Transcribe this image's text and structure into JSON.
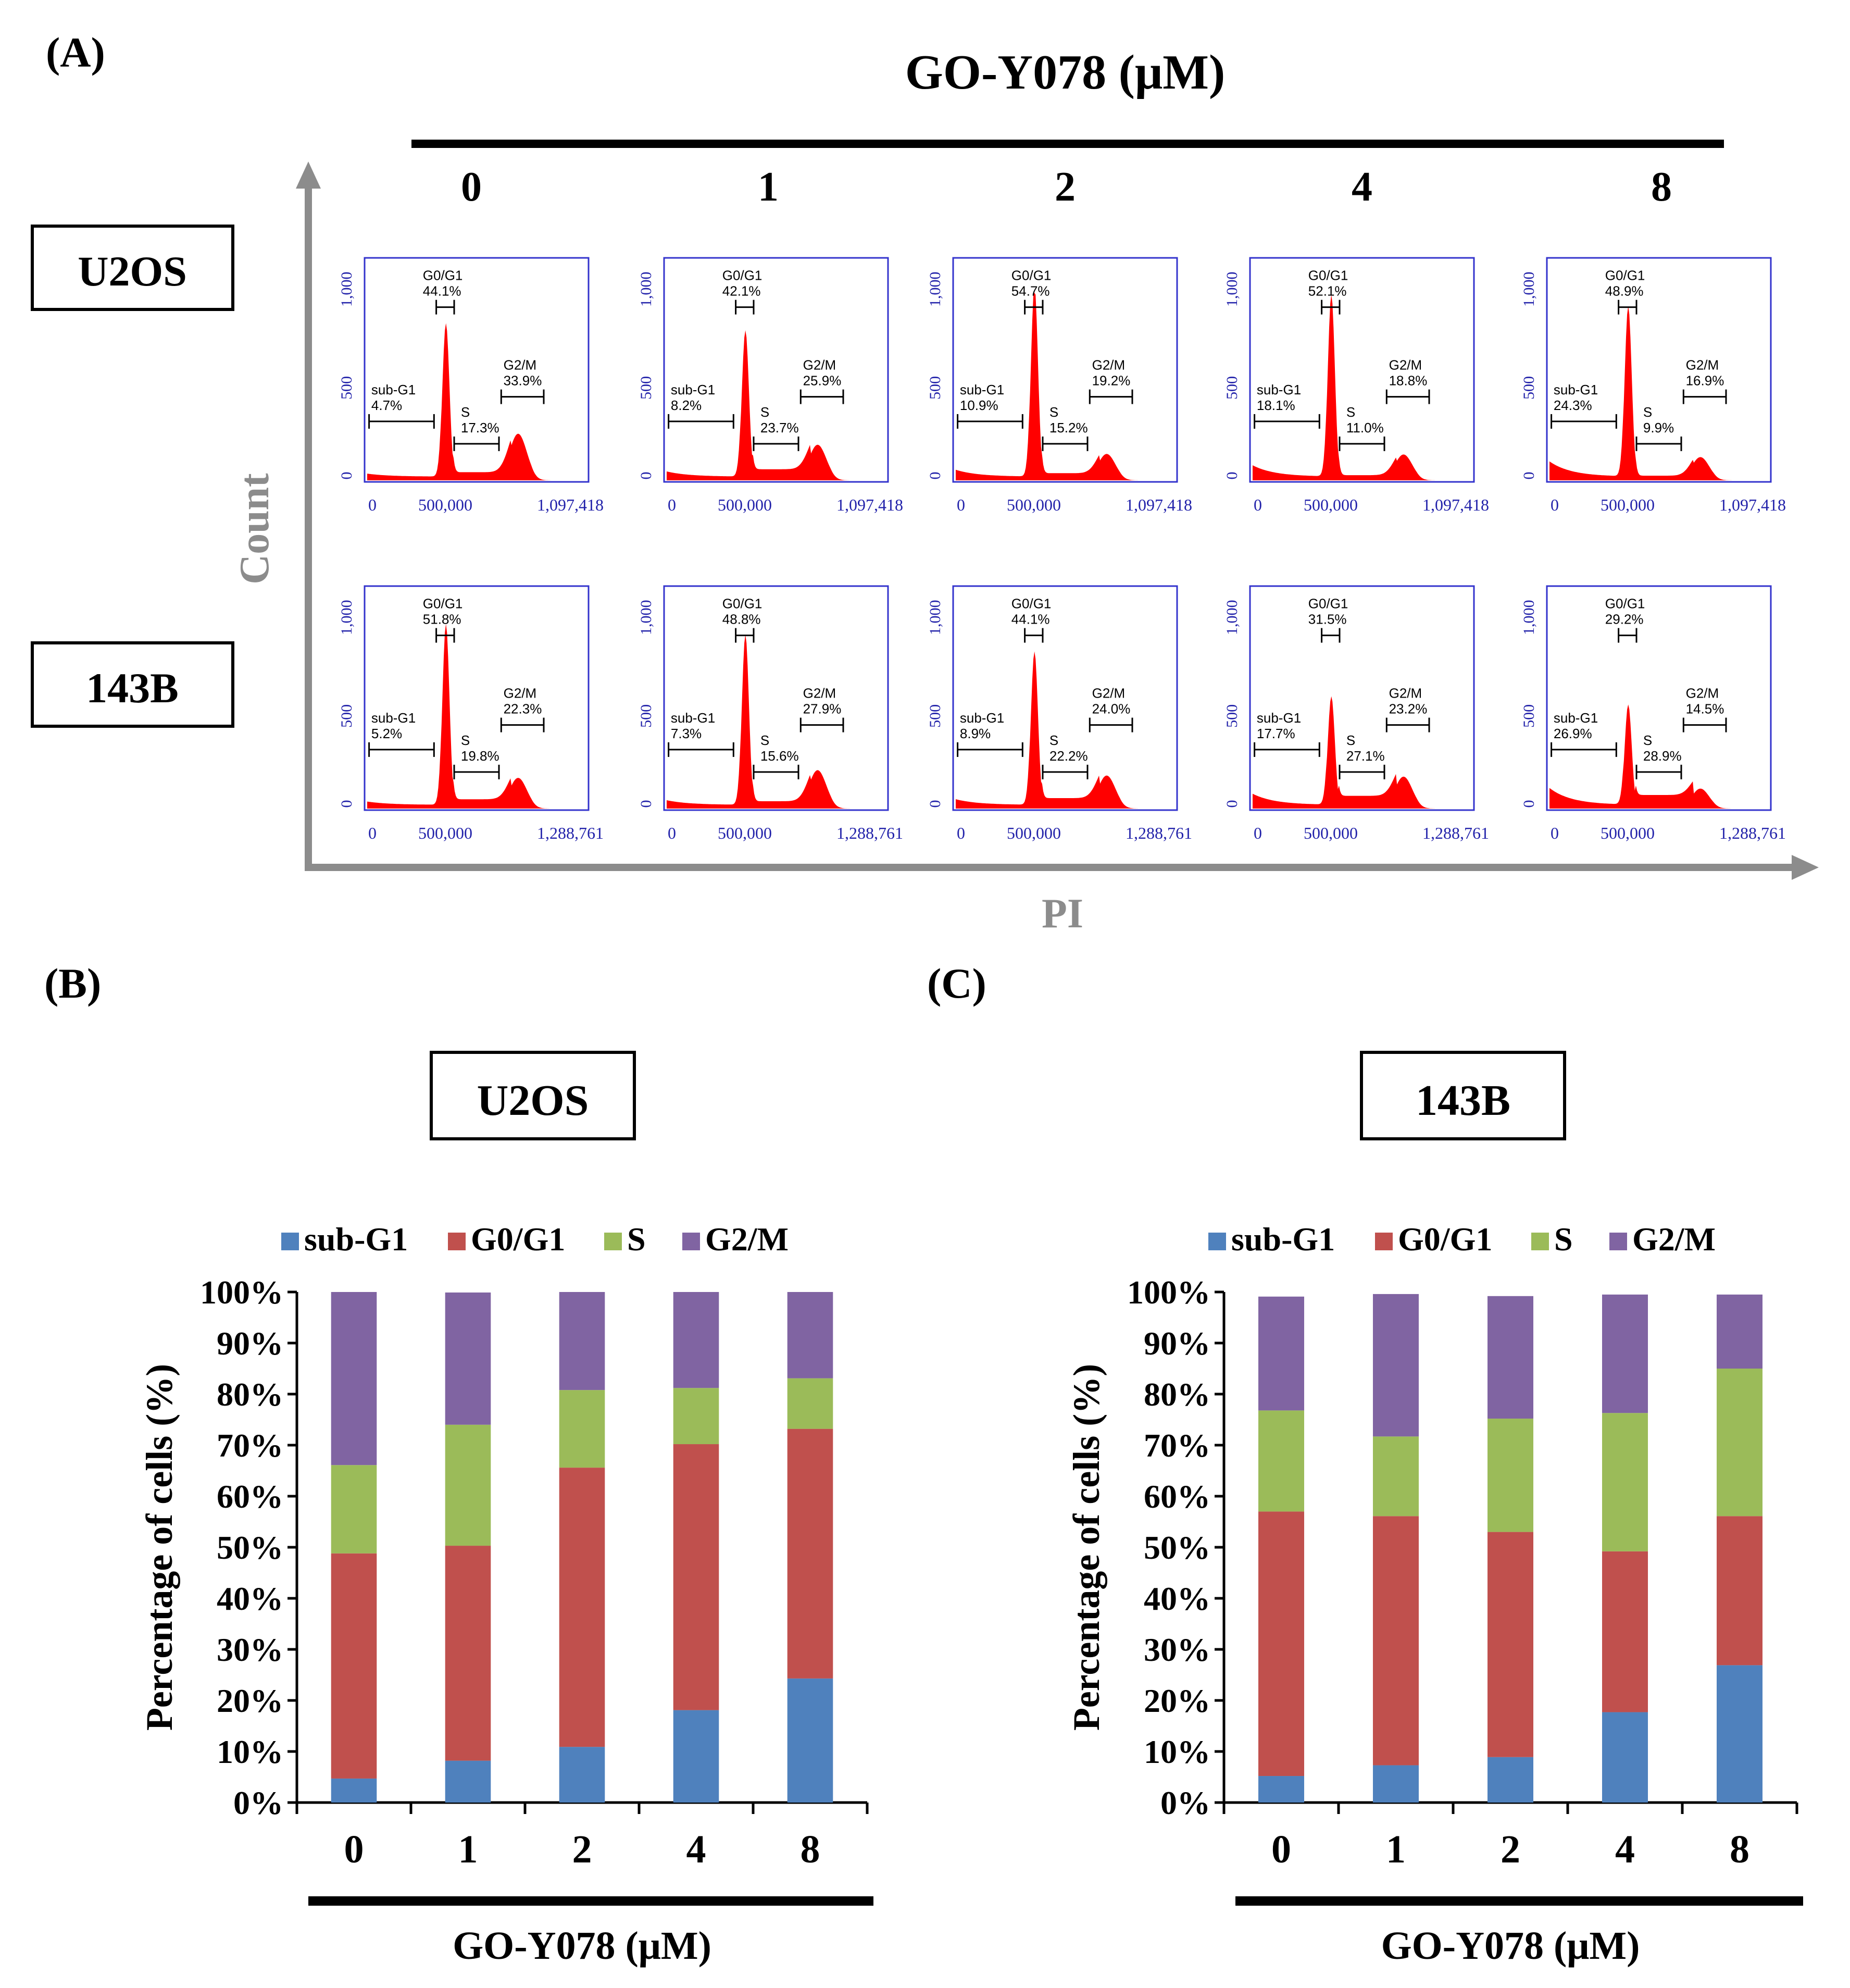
{
  "panels": {
    "a": "(A)",
    "b": "(B)",
    "c": "(C)"
  },
  "drug_axis": {
    "label": "GO-Y078 (μM)",
    "doses": [
      "0",
      "1",
      "2",
      "4",
      "8"
    ]
  },
  "panel_a": {
    "y_label": "Count",
    "x_label": "PI",
    "rows": [
      {
        "cell_line": "U2OS",
        "y_ticks": [
          "0",
          "500",
          "1,000"
        ],
        "x_ticks": [
          "0",
          "500,000",
          "1,097,418"
        ],
        "histograms": [
          {
            "dose": "0",
            "sub_g1": "4.7%",
            "g0_g1": "44.1%",
            "s": "17.3%",
            "g2_m": "33.9%"
          },
          {
            "dose": "1",
            "sub_g1": "8.2%",
            "g0_g1": "42.1%",
            "s": "23.7%",
            "g2_m": "25.9%"
          },
          {
            "dose": "2",
            "sub_g1": "10.9%",
            "g0_g1": "54.7%",
            "s": "15.2%",
            "g2_m": "19.2%"
          },
          {
            "dose": "4",
            "sub_g1": "18.1%",
            "g0_g1": "52.1%",
            "s": "11.0%",
            "g2_m": "18.8%"
          },
          {
            "dose": "8",
            "sub_g1": "24.3%",
            "g0_g1": "48.9%",
            "s": "9.9%",
            "g2_m": "16.9%"
          }
        ]
      },
      {
        "cell_line": "143B",
        "y_ticks": [
          "0",
          "500",
          "1,000"
        ],
        "x_ticks": [
          "0",
          "500,000",
          "1,288,761"
        ],
        "histograms": [
          {
            "dose": "0",
            "sub_g1": "5.2%",
            "g0_g1": "51.8%",
            "s": "19.8%",
            "g2_m": "22.3%"
          },
          {
            "dose": "1",
            "sub_g1": "7.3%",
            "g0_g1": "48.8%",
            "s": "15.6%",
            "g2_m": "27.9%"
          },
          {
            "dose": "2",
            "sub_g1": "8.9%",
            "g0_g1": "44.1%",
            "s": "22.2%",
            "g2_m": "24.0%"
          },
          {
            "dose": "4",
            "sub_g1": "17.7%",
            "g0_g1": "31.5%",
            "s": "27.1%",
            "g2_m": "23.2%"
          },
          {
            "dose": "8",
            "sub_g1": "26.9%",
            "g0_g1": "29.2%",
            "s": "28.9%",
            "g2_m": "14.5%"
          }
        ]
      }
    ],
    "gate_labels": {
      "sub_g1": "sub-G1",
      "g0_g1": "G0/G1",
      "s": "S",
      "g2_m": "G2/M"
    }
  },
  "colors": {
    "histogram_fill": "#ff0000",
    "histogram_frame": "#3333cc",
    "tick_text": "#2222aa",
    "axis_gray": "#8c8c8c",
    "sub_g1": "#4f81bd",
    "g0_g1": "#c0504d",
    "s": "#9bbb59",
    "g2_m": "#8064a2"
  },
  "chart_data": [
    {
      "type": "bar",
      "stacked": true,
      "title": "U2OS",
      "xlabel": "GO-Y078 (μM)",
      "ylabel": "Percentage of cells (%)",
      "ylim": [
        0,
        100
      ],
      "y_ticks": [
        "0%",
        "10%",
        "20%",
        "30%",
        "40%",
        "50%",
        "60%",
        "70%",
        "80%",
        "90%",
        "100%"
      ],
      "categories": [
        "0",
        "1",
        "2",
        "4",
        "8"
      ],
      "legend_position": "top",
      "series": [
        {
          "name": "sub-G1",
          "values": [
            4.7,
            8.2,
            10.9,
            18.1,
            24.3
          ]
        },
        {
          "name": "G0/G1",
          "values": [
            44.1,
            42.1,
            54.7,
            52.1,
            48.9
          ]
        },
        {
          "name": "S",
          "values": [
            17.3,
            23.7,
            15.2,
            11.0,
            9.9
          ]
        },
        {
          "name": "G2/M",
          "values": [
            33.9,
            25.9,
            19.2,
            18.8,
            16.9
          ]
        }
      ]
    },
    {
      "type": "bar",
      "stacked": true,
      "title": "143B",
      "xlabel": "GO-Y078 (μM)",
      "ylabel": "Percentage of cells (%)",
      "ylim": [
        0,
        100
      ],
      "y_ticks": [
        "0%",
        "10%",
        "20%",
        "30%",
        "40%",
        "50%",
        "60%",
        "70%",
        "80%",
        "90%",
        "100%"
      ],
      "categories": [
        "0",
        "1",
        "2",
        "4",
        "8"
      ],
      "legend_position": "top",
      "series": [
        {
          "name": "sub-G1",
          "values": [
            5.2,
            7.3,
            8.9,
            17.7,
            26.9
          ]
        },
        {
          "name": "G0/G1",
          "values": [
            51.8,
            48.8,
            44.1,
            31.5,
            29.2
          ]
        },
        {
          "name": "S",
          "values": [
            19.8,
            15.6,
            22.2,
            27.1,
            28.9
          ]
        },
        {
          "name": "G2/M",
          "values": [
            22.3,
            27.9,
            24.0,
            23.2,
            14.5
          ]
        }
      ]
    }
  ]
}
